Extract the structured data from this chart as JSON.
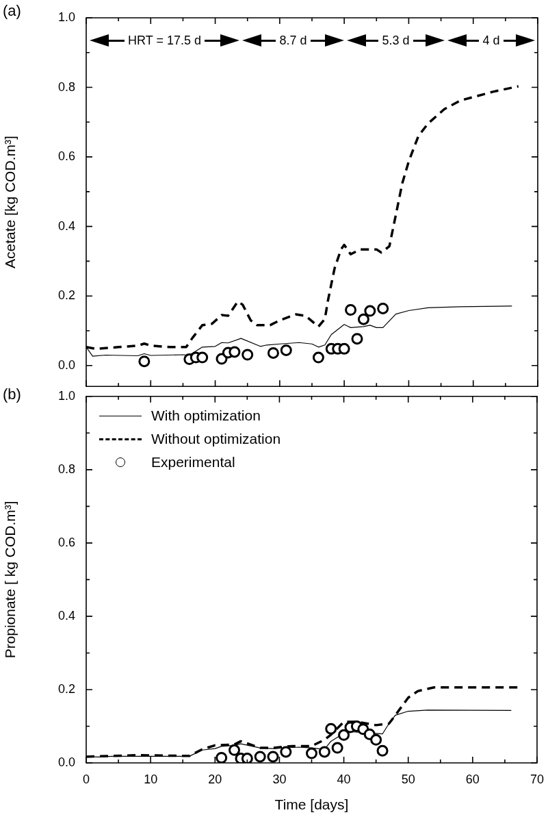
{
  "chart_data": [
    {
      "type": "line",
      "ylabel": "Acetate [kg COD.m³]",
      "xlim": [
        0,
        70
      ],
      "ylim": [
        -0.06,
        1.0
      ],
      "xticks": [
        0,
        {
          "value": 5,
          "label": null
        },
        10,
        {
          "value": 15,
          "label": null
        },
        20,
        {
          "value": 25,
          "label": null
        },
        30,
        {
          "value": 35,
          "label": null
        },
        40,
        {
          "value": 45,
          "label": null
        },
        50,
        {
          "value": 55,
          "label": null
        },
        60,
        {
          "value": 65,
          "label": null
        },
        70
      ],
      "yticks": [
        {
          "value": 0,
          "label": "0.0"
        },
        {
          "value": 0.1,
          "label": null
        },
        {
          "value": 0.2,
          "label": "0.2"
        },
        {
          "value": 0.3,
          "label": null
        },
        {
          "value": 0.4,
          "label": "0.4"
        },
        {
          "value": 0.5,
          "label": null
        },
        {
          "value": 0.6,
          "label": "0.6"
        },
        {
          "value": 0.7,
          "label": null
        },
        {
          "value": 0.8,
          "label": "0.8"
        },
        {
          "value": 0.9,
          "label": null
        },
        {
          "value": 1.0,
          "label": "1.0"
        }
      ],
      "tick_labels": "y",
      "annotations": [
        "(a)",
        "HRT = 17.5 d",
        "8.7 d",
        "5.3 d",
        "4 d"
      ],
      "series": [
        {
          "type": "line",
          "color": "#000000",
          "line_style": "solid",
          "x": [
            0,
            1,
            3,
            8,
            9,
            10,
            15,
            16,
            18,
            20,
            21,
            22,
            24,
            27,
            28,
            30,
            33,
            35,
            36,
            37,
            38,
            40,
            41,
            43,
            44,
            45,
            46,
            48,
            50,
            53,
            58,
            66
          ],
          "values": [
            0.053,
            0.027,
            0.03,
            0.028,
            0.034,
            0.029,
            0.031,
            0.03,
            0.053,
            0.055,
            0.066,
            0.065,
            0.078,
            0.055,
            0.059,
            0.062,
            0.066,
            0.062,
            0.053,
            0.059,
            0.089,
            0.118,
            0.109,
            0.112,
            0.116,
            0.109,
            0.109,
            0.148,
            0.158,
            0.166,
            0.169,
            0.171
          ]
        },
        {
          "type": "line",
          "color": "#000000",
          "line_style": "dashed",
          "x": [
            0,
            1.5,
            5,
            8,
            9,
            10,
            13,
            15.5,
            16.5,
            18,
            19.5,
            21,
            22,
            23.5,
            24.25,
            25.5,
            26.5,
            28.5,
            30,
            32.5,
            34,
            36,
            37,
            37.5,
            38.5,
            39.5,
            40,
            41,
            42.5,
            45,
            45.75,
            47,
            48,
            49,
            50,
            51.5,
            53,
            55.5,
            58,
            63,
            67
          ],
          "values": [
            0.053,
            0.048,
            0.053,
            0.057,
            0.063,
            0.057,
            0.053,
            0.053,
            0.08,
            0.116,
            0.12,
            0.145,
            0.143,
            0.184,
            0.175,
            0.13,
            0.116,
            0.116,
            0.13,
            0.147,
            0.143,
            0.112,
            0.134,
            0.189,
            0.279,
            0.334,
            0.347,
            0.32,
            0.334,
            0.334,
            0.325,
            0.343,
            0.433,
            0.524,
            0.587,
            0.66,
            0.696,
            0.737,
            0.762,
            0.787,
            0.803
          ]
        },
        {
          "type": "scatter",
          "color": "#000000",
          "marker": "circle",
          "x": [
            9,
            16,
            17,
            18,
            21,
            22,
            23,
            25,
            29,
            31,
            36,
            38,
            39,
            40,
            41,
            42,
            43,
            44,
            46
          ],
          "values": [
            0.012,
            0.018,
            0.023,
            0.023,
            0.019,
            0.037,
            0.039,
            0.031,
            0.036,
            0.044,
            0.023,
            0.048,
            0.048,
            0.048,
            0.16,
            0.077,
            0.133,
            0.157,
            0.164
          ]
        }
      ]
    },
    {
      "type": "line",
      "xlabel": "Time [days]",
      "ylabel": "Propionate [ kg COD.m³]",
      "xlim": [
        0,
        70
      ],
      "ylim": [
        0,
        1.0
      ],
      "xticks": [
        0,
        {
          "value": 5,
          "label": null
        },
        10,
        {
          "value": 15,
          "label": null
        },
        20,
        {
          "value": 25,
          "label": null
        },
        30,
        {
          "value": 35,
          "label": null
        },
        40,
        {
          "value": 45,
          "label": null
        },
        50,
        {
          "value": 55,
          "label": null
        },
        60,
        {
          "value": 65,
          "label": null
        },
        70
      ],
      "yticks": [
        {
          "value": 0,
          "label": "0.0"
        },
        {
          "value": 0.1,
          "label": null
        },
        {
          "value": 0.2,
          "label": "0.2"
        },
        {
          "value": 0.3,
          "label": null
        },
        {
          "value": 0.4,
          "label": "0.4"
        },
        {
          "value": 0.5,
          "label": null
        },
        {
          "value": 0.6,
          "label": "0.6"
        },
        {
          "value": 0.7,
          "label": null
        },
        {
          "value": 0.8,
          "label": "0.8"
        },
        {
          "value": 0.9,
          "label": null
        },
        {
          "value": 1.0,
          "label": "1.0"
        }
      ],
      "legend": "top left",
      "annotations": [
        "(b)"
      ],
      "series": [
        {
          "type": "line",
          "name": "With optimization",
          "color": "#000000",
          "line_style": "solid",
          "x": [
            0,
            2,
            4,
            8,
            16,
            18,
            20,
            21,
            23,
            24,
            27,
            29,
            33,
            35,
            37,
            38,
            40,
            41,
            43,
            46,
            47,
            48,
            50,
            53,
            66
          ],
          "values": [
            0.017,
            0.016,
            0.018,
            0.018,
            0.018,
            0.035,
            0.039,
            0.045,
            0.048,
            0.052,
            0.041,
            0.039,
            0.043,
            0.041,
            0.037,
            0.059,
            0.081,
            0.085,
            0.083,
            0.079,
            0.107,
            0.13,
            0.141,
            0.144,
            0.143
          ]
        },
        {
          "type": "line",
          "name": "Without optimization",
          "color": "#000000",
          "line_style": "dashed",
          "x": [
            0,
            8,
            16,
            18,
            20,
            23,
            24,
            27,
            29,
            32,
            35,
            37,
            38,
            40,
            42,
            45,
            47,
            48,
            50,
            51.5,
            54,
            58,
            67
          ],
          "values": [
            0.017,
            0.021,
            0.019,
            0.037,
            0.048,
            0.05,
            0.059,
            0.041,
            0.041,
            0.046,
            0.046,
            0.063,
            0.077,
            0.112,
            0.112,
            0.103,
            0.107,
            0.13,
            0.178,
            0.196,
            0.206,
            0.206,
            0.206
          ]
        },
        {
          "type": "scatter",
          "name": "Experimental",
          "color": "#000000",
          "marker": "circle",
          "x": [
            21,
            23,
            24,
            25,
            27,
            29,
            31,
            35,
            37,
            38,
            39,
            40,
            41,
            42,
            43,
            44,
            45,
            46
          ],
          "values": [
            0.014,
            0.035,
            0.012,
            0.012,
            0.017,
            0.017,
            0.03,
            0.026,
            0.03,
            0.093,
            0.041,
            0.076,
            0.097,
            0.1,
            0.092,
            0.078,
            0.063,
            0.033
          ]
        }
      ]
    }
  ]
}
